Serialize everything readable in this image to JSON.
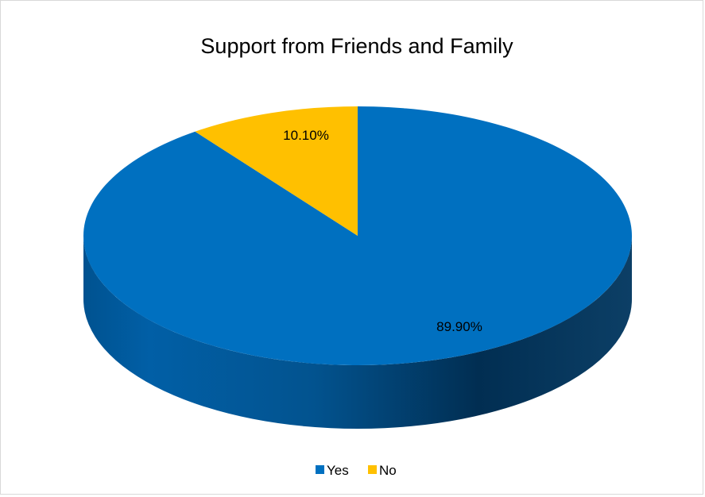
{
  "chart_data": {
    "type": "pie",
    "title": "Support from Friends and Family",
    "style": "3d",
    "labels": [
      "Yes",
      "No"
    ],
    "values": [
      89.9,
      10.1
    ],
    "data_labels": [
      "89.90%",
      "10.10%"
    ],
    "colors": [
      "#0070C0",
      "#FFC000"
    ],
    "legend_position": "bottom"
  }
}
